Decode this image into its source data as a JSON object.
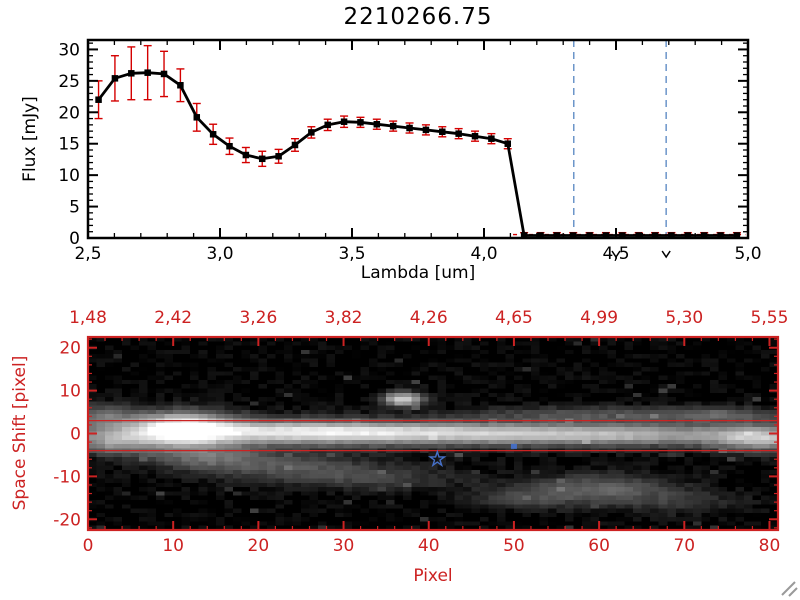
{
  "title": "2210266.75",
  "colors": {
    "axis": "#000000",
    "spectrum": "#000000",
    "error_red": "#d40000",
    "frame_red": "#cc2222",
    "label_red": "#cc2222",
    "dashed_blue": "#6b95c9",
    "marker_blue": "#4670c8",
    "corner_gray": "#9a9a9a",
    "image_bg": "#000000"
  },
  "chart_data": [
    {
      "type": "line",
      "title": "2210266.75",
      "xlabel": "Lambda [um]",
      "ylabel": "Flux [mJy]",
      "xlim": [
        2.5,
        5.0
      ],
      "ylim": [
        0,
        31.5
      ],
      "x": [
        2.54,
        2.602,
        2.664,
        2.726,
        2.788,
        2.85,
        2.912,
        2.974,
        3.036,
        3.098,
        3.16,
        3.222,
        3.284,
        3.346,
        3.408,
        3.47,
        3.532,
        3.594,
        3.656,
        3.718,
        3.78,
        3.842,
        3.904,
        3.966,
        4.028,
        4.09,
        4.152,
        4.214,
        4.276,
        4.338,
        4.4,
        4.462,
        4.524,
        4.586,
        4.648,
        4.71,
        4.772,
        4.834,
        4.896,
        4.958
      ],
      "y": [
        22.0,
        25.4,
        26.2,
        26.3,
        26.1,
        24.3,
        19.2,
        16.5,
        14.6,
        13.2,
        12.6,
        13.0,
        14.8,
        16.8,
        18.0,
        18.5,
        18.4,
        18.1,
        17.8,
        17.5,
        17.2,
        16.9,
        16.6,
        16.2,
        15.8,
        15.0,
        0.4,
        0.4,
        0.4,
        0.4,
        0.4,
        0.4,
        0.4,
        0.4,
        0.4,
        0.4,
        0.4,
        0.4,
        0.4,
        0.4
      ],
      "yerr": [
        3.0,
        3.6,
        4.2,
        4.3,
        3.6,
        2.6,
        2.2,
        1.6,
        1.3,
        1.2,
        1.2,
        1.1,
        1.0,
        0.9,
        0.9,
        0.9,
        0.8,
        0.8,
        0.8,
        0.8,
        0.8,
        0.8,
        0.8,
        0.8,
        0.8,
        0.8,
        0.45,
        0.45,
        0.45,
        0.45,
        0.45,
        0.45,
        0.45,
        0.45,
        0.45,
        0.45,
        0.45,
        0.45,
        0.45,
        0.45
      ],
      "marker": "square",
      "x_ticks": {
        "values": [
          2.5,
          3.0,
          3.5,
          4.0,
          4.5,
          5.0
        ],
        "labels": [
          "2,5",
          "3,0",
          "3,5",
          "4,0",
          "4,5",
          "5,0"
        ]
      },
      "y_ticks": {
        "values": [
          0,
          5,
          10,
          15,
          20,
          25,
          30
        ],
        "labels": [
          "0",
          "5",
          "10",
          "15",
          "20",
          "25",
          "30"
        ]
      },
      "vlines_dashed_blue": [
        4.34,
        4.69
      ],
      "zero_line_red_dashed": {
        "from_x": 4.11,
        "to_x": 4.99,
        "y": 0.55
      },
      "axis_markers": [
        4.5,
        4.69
      ],
      "grid": false,
      "legend": false
    },
    {
      "type": "heatmap",
      "xlabel": "Pixel",
      "ylabel": "Space Shift [pixel]",
      "xlim": [
        0,
        81
      ],
      "ylim": [
        -22.5,
        22.5
      ],
      "x_ticks": {
        "values": [
          0,
          10,
          20,
          30,
          40,
          50,
          60,
          70,
          80
        ],
        "labels": [
          "0",
          "10",
          "20",
          "30",
          "40",
          "50",
          "60",
          "70",
          "80"
        ]
      },
      "y_ticks": {
        "values": [
          20,
          10,
          0,
          -10,
          -20
        ],
        "labels": [
          "20",
          "10",
          "0",
          "-10",
          "-20"
        ]
      },
      "top_axis_ticks": {
        "values": [
          0,
          10,
          20,
          30,
          40,
          50,
          60,
          70,
          80
        ],
        "labels": [
          "1,48",
          "2,42",
          "3,26",
          "3,82",
          "4,26",
          "4,65",
          "4,99",
          "5,30",
          "5,55"
        ]
      },
      "aperture_lines_y": [
        3,
        -4
      ],
      "star_marker": {
        "x": 41,
        "y": -6
      },
      "dot_marker": {
        "x": 50,
        "y": -3
      },
      "noise_seed": 42,
      "blobs": [
        {
          "x": 11,
          "y": 1,
          "sx": 4,
          "sy": 2.6,
          "a": 1.0
        },
        {
          "x": 40,
          "y": 0,
          "sx": 45,
          "sy": 2.4,
          "a": 0.28
        },
        {
          "x": 22,
          "y": 0.5,
          "sx": 8,
          "sy": 1.8,
          "a": 0.45
        },
        {
          "x": 34,
          "y": 0.2,
          "sx": 10,
          "sy": 1.6,
          "a": 0.35
        },
        {
          "x": 48,
          "y": 0,
          "sx": 12,
          "sy": 1.5,
          "a": 0.3
        },
        {
          "x": 64,
          "y": -0.5,
          "sx": 10,
          "sy": 1.5,
          "a": 0.3
        },
        {
          "x": 79,
          "y": -1.2,
          "sx": 4,
          "sy": 2.0,
          "a": 0.5
        },
        {
          "x": 37,
          "y": 8,
          "sx": 1.6,
          "sy": 1.1,
          "a": 0.8
        },
        {
          "x": 58,
          "y": 4.5,
          "sx": 9,
          "sy": 1.3,
          "a": 0.2
        },
        {
          "x": 74,
          "y": 4.5,
          "sx": 5,
          "sy": 1.2,
          "a": 0.24
        },
        {
          "x": 3,
          "y": -2,
          "sx": 3,
          "sy": 2,
          "a": 0.4
        },
        {
          "x": 2,
          "y": 4,
          "sx": 2.5,
          "sy": 2,
          "a": 0.3
        },
        {
          "x": 14,
          "y": -5.5,
          "sx": 5,
          "sy": 2,
          "a": 0.3
        },
        {
          "x": 24,
          "y": -8,
          "sx": 7,
          "sy": 2.2,
          "a": 0.22
        },
        {
          "x": 34,
          "y": -10.5,
          "sx": 7,
          "sy": 2,
          "a": 0.16
        },
        {
          "x": 60,
          "y": -13,
          "sx": 6,
          "sy": 2.4,
          "a": 0.3
        },
        {
          "x": 51,
          "y": -15,
          "sx": 4,
          "sy": 1.8,
          "a": 0.16
        },
        {
          "x": 70,
          "y": -16,
          "sx": 5,
          "sy": 2,
          "a": 0.12
        }
      ]
    }
  ],
  "corner_glyph": true
}
